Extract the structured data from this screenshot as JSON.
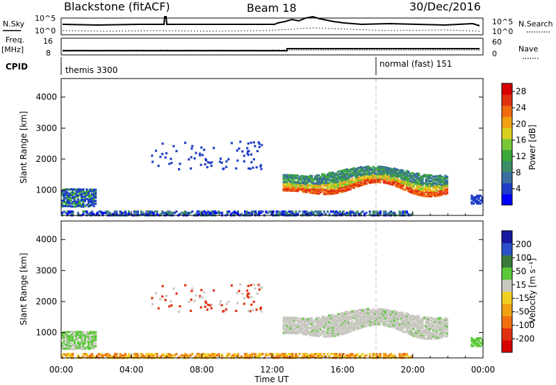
{
  "header": {
    "title": "Blackstone (fitACF)",
    "beam": "Beam 18",
    "date": "30/Dec/2016"
  },
  "noise_panel": {
    "left_label": "N.Sky",
    "right_label": "N.Search",
    "left_tick_top": "10^5",
    "left_tick_bottom": "10^0",
    "right_tick_top": "10^5",
    "right_tick_bottom": "10^0"
  },
  "freq_panel": {
    "left_label_1": "Freq.",
    "left_label_2": "[MHz]",
    "left_tick_top": "16",
    "left_tick_bottom": "8",
    "right_label": "Nave",
    "right_tick_top": "60",
    "right_tick_bottom": "0"
  },
  "cpid_panel": {
    "label": "CPID",
    "program_1": "themis 3300",
    "program_2": "normal (fast) 151"
  },
  "xaxis": {
    "title": "Time UT",
    "ticks": [
      "00:00",
      "04:00",
      "08:00",
      "12:00",
      "16:00",
      "20:00",
      "00:00"
    ]
  },
  "colors": {
    "power": [
      "#0000ff",
      "#1f3ec8",
      "#3a6ea0",
      "#3c8c68",
      "#3ca83a",
      "#78c83a",
      "#d8d020",
      "#f0a010",
      "#f06a10",
      "#e03010",
      "#d80000"
    ],
    "velocity": [
      "#1818a0",
      "#2850c8",
      "#3a7a3a",
      "#5cc83a",
      "#c8c8c0",
      "#f0d020",
      "#f0a010",
      "#f07010",
      "#e03010",
      "#d80000"
    ]
  },
  "chart_data": [
    {
      "type": "heatmap",
      "name": "power",
      "ylabel": "Slant Range [km]",
      "yticks": [
        "1000",
        "2000",
        "3000",
        "4000"
      ],
      "yrange": [
        180,
        4600
      ],
      "colorbar_label": "Power [dB]",
      "colorbar_ticks": [
        "4",
        "8",
        "12",
        "16",
        "20",
        "24",
        "28"
      ],
      "colorbar_range": [
        0,
        30
      ],
      "xrange_hours": [
        0,
        24
      ]
    },
    {
      "type": "heatmap",
      "name": "velocity",
      "ylabel": "Slant Range [km]",
      "yticks": [
        "1000",
        "2000",
        "3000",
        "4000"
      ],
      "yrange": [
        180,
        4600
      ],
      "colorbar_label": "Velocity [m s⁻¹]",
      "colorbar_ticks": [
        "200",
        "100",
        "50",
        "15",
        "-15",
        "-50",
        "-100",
        "-200"
      ],
      "colorbar_range": [
        -250,
        250
      ],
      "xrange_hours": [
        0,
        24
      ]
    }
  ]
}
